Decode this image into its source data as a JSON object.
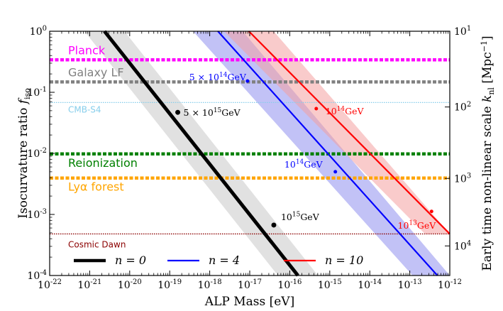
{
  "chart_data": {
    "type": "line",
    "xlabel": "ALP Mass [eV]",
    "ylabel": "Isocurvature ratio f_iso",
    "y2label": "Early time non-linear scale k_nl [Mpc^-1]",
    "xlim": [
      1e-22,
      1e-12
    ],
    "ylim": [
      0.0001,
      1
    ],
    "x_tick_labels": [
      "10^-22",
      "10^-21",
      "10^-20",
      "10^-19",
      "10^-18",
      "10^-17",
      "10^-16",
      "10^-15",
      "10^-14",
      "10^-13",
      "10^-12"
    ],
    "y_tick_labels": [
      "10^-4",
      "10^-3",
      "10^-2",
      "10^-1",
      "10^0"
    ],
    "y2_tick_labels": [
      "10^4",
      "10^3",
      "10^2",
      "10^1"
    ],
    "y2_ticks_fiso": [
      0.000305,
      0.00389,
      0.0575,
      1.0
    ],
    "constraints": [
      {
        "label": "Planck",
        "f_iso": 0.34,
        "color": "#ff00ff",
        "style": "thick"
      },
      {
        "label": "Galaxy LF",
        "f_iso": 0.148,
        "color": "#808080",
        "style": "thick"
      },
      {
        "label": "CMB-S4",
        "f_iso": 0.068,
        "color": "#87ceeb",
        "style": "thin"
      },
      {
        "label": "Reionization",
        "f_iso": 0.0098,
        "color": "#008000",
        "style": "thick"
      },
      {
        "label": "Lyα forest",
        "f_iso": 0.00395,
        "color": "#ffa500",
        "style": "thick"
      },
      {
        "label": "Cosmic Dawn",
        "f_iso": 0.00048,
        "color": "#8b0000",
        "style": "thin"
      }
    ],
    "series": [
      {
        "name": "n = 0",
        "color": "#000000",
        "band_color": "#c8c8c8",
        "x": [
          2.34e-21,
          1.6e-16
        ],
        "y": [
          1.0,
          0.0001
        ],
        "band_x_offset_dex": 0.5,
        "markers": [
          {
            "mass": 1.59e-19,
            "f_iso": 0.047,
            "label": "5 × 10^15 GeV"
          },
          {
            "mass": 4e-17,
            "f_iso": 0.00067,
            "label": "10^15 GeV"
          }
        ]
      },
      {
        "name": "n = 4",
        "color": "#0000ff",
        "band_color": "#9090ee",
        "x": [
          1.6e-18,
          4.9e-13
        ],
        "y": [
          1.0,
          0.0001
        ],
        "band_x_offset_dex": 0.62,
        "markers": [
          {
            "mass": 8.8e-18,
            "f_iso": 0.153,
            "label": "5 × 10^14 GeV"
          },
          {
            "mass": 1.38e-15,
            "f_iso": 0.005,
            "label": "10^14 GeV"
          }
        ]
      },
      {
        "name": "n = 10",
        "color": "#ff0000",
        "band_color": "#f4a0a0",
        "x": [
          9.5e-18,
          1e-12
        ],
        "y": [
          1.0,
          0.00048
        ],
        "band_x_offset_dex": 0.62,
        "markers": [
          {
            "mass": 4.6e-16,
            "f_iso": 0.054,
            "label": "10^14 GeV"
          },
          {
            "mass": 3.5e-13,
            "f_iso": 0.00112,
            "label": "10^13 GeV"
          }
        ]
      }
    ],
    "legend": [
      {
        "label": "n = 0",
        "color": "#000000"
      },
      {
        "label": "n = 4",
        "color": "#0000ff"
      },
      {
        "label": "n = 10",
        "color": "#ff0000"
      }
    ]
  }
}
